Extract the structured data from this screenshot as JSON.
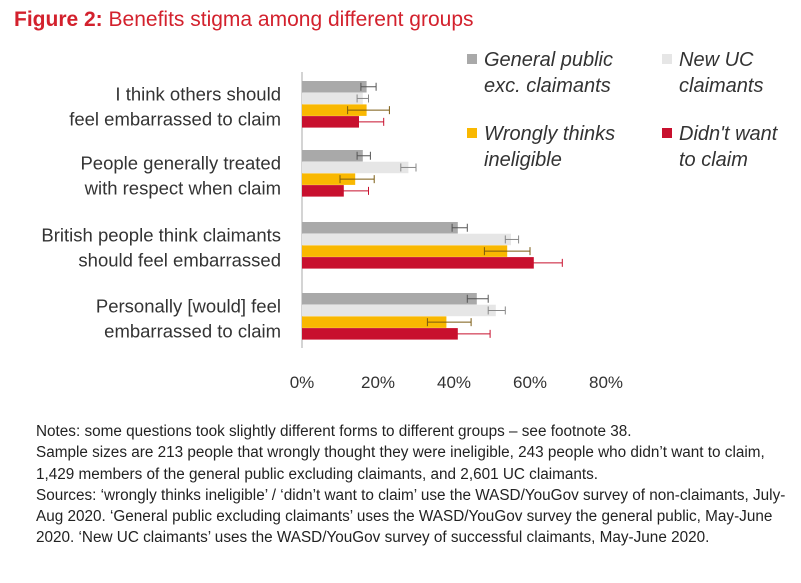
{
  "title": {
    "figure_label": "Figure 2:",
    "text": "Benefits stigma among different groups"
  },
  "colors": {
    "title": "#d3212d",
    "text": "#333333",
    "axis": "#aaaaaa",
    "error_bar": "#444444"
  },
  "chart_data": {
    "type": "bar",
    "orientation": "horizontal",
    "title": "Figure 2: Benefits stigma among different groups",
    "xlabel": "",
    "ylabel": "",
    "xlim": [
      0,
      80
    ],
    "x_ticks": [
      "0%",
      "20%",
      "40%",
      "60%",
      "80%"
    ],
    "x_tick_values": [
      0,
      20,
      40,
      60,
      80
    ],
    "grid": false,
    "legend_position": "top-right",
    "categories": [
      [
        "I think others should",
        "feel embarrassed to claim"
      ],
      [
        "People generally treated",
        "with respect when claim"
      ],
      [
        "British people think claimants",
        "should feel embarrassed"
      ],
      [
        "Personally [would] feel",
        "embarrassed to claim"
      ]
    ],
    "series": [
      {
        "name": [
          "General public",
          "exc. claimants"
        ],
        "color": "#a9a9a9",
        "error_color": "#555555",
        "values": [
          17,
          16,
          41,
          46
        ],
        "errors": [
          [
            15.5,
            19.5
          ],
          [
            14.5,
            18
          ],
          [
            39.5,
            43.5
          ],
          [
            43.5,
            49
          ]
        ]
      },
      {
        "name": [
          "New UC",
          "claimants"
        ],
        "color": "#e6e6e6",
        "error_color": "#888888",
        "values": [
          16,
          28,
          55,
          51
        ],
        "errors": [
          [
            14.5,
            17.5
          ],
          [
            26,
            30
          ],
          [
            53.5,
            57
          ],
          [
            49,
            53.5
          ]
        ]
      },
      {
        "name": [
          "Wrongly thinks",
          "ineligible"
        ],
        "color": "#f9b801",
        "error_color": "#7a5a10",
        "values": [
          17,
          14,
          54,
          38
        ],
        "errors": [
          [
            12,
            23
          ],
          [
            10,
            19
          ],
          [
            48,
            60
          ],
          [
            33,
            44.5
          ]
        ]
      },
      {
        "name": [
          "Didn't want",
          "to claim"
        ],
        "color": "#c8102e",
        "error_color": "#c8102e",
        "values": [
          15,
          11,
          61,
          41
        ],
        "errors": [
          [
            10,
            21.5
          ],
          [
            7,
            17.5
          ],
          [
            54,
            68.5
          ],
          [
            34,
            49.5
          ]
        ]
      }
    ]
  },
  "notes": [
    "Notes: some questions took slightly different forms to different groups – see footnote 38.",
    "Sample sizes are 213 people that wrongly thought they were ineligible, 243 people who didn’t want to claim, 1,429 members of the general public excluding claimants, and 2,601 UC claimants.",
    "Sources: ‘wrongly thinks ineligible’ / ‘didn’t want to claim’ use the WASD/YouGov survey of non-claimants, July-Aug 2020. ‘General public excluding claimants’ uses the WASD/YouGov survey the general public, May-June 2020. ‘New UC claimants’ uses the WASD/YouGov survey of successful claimants, May-June 2020."
  ]
}
